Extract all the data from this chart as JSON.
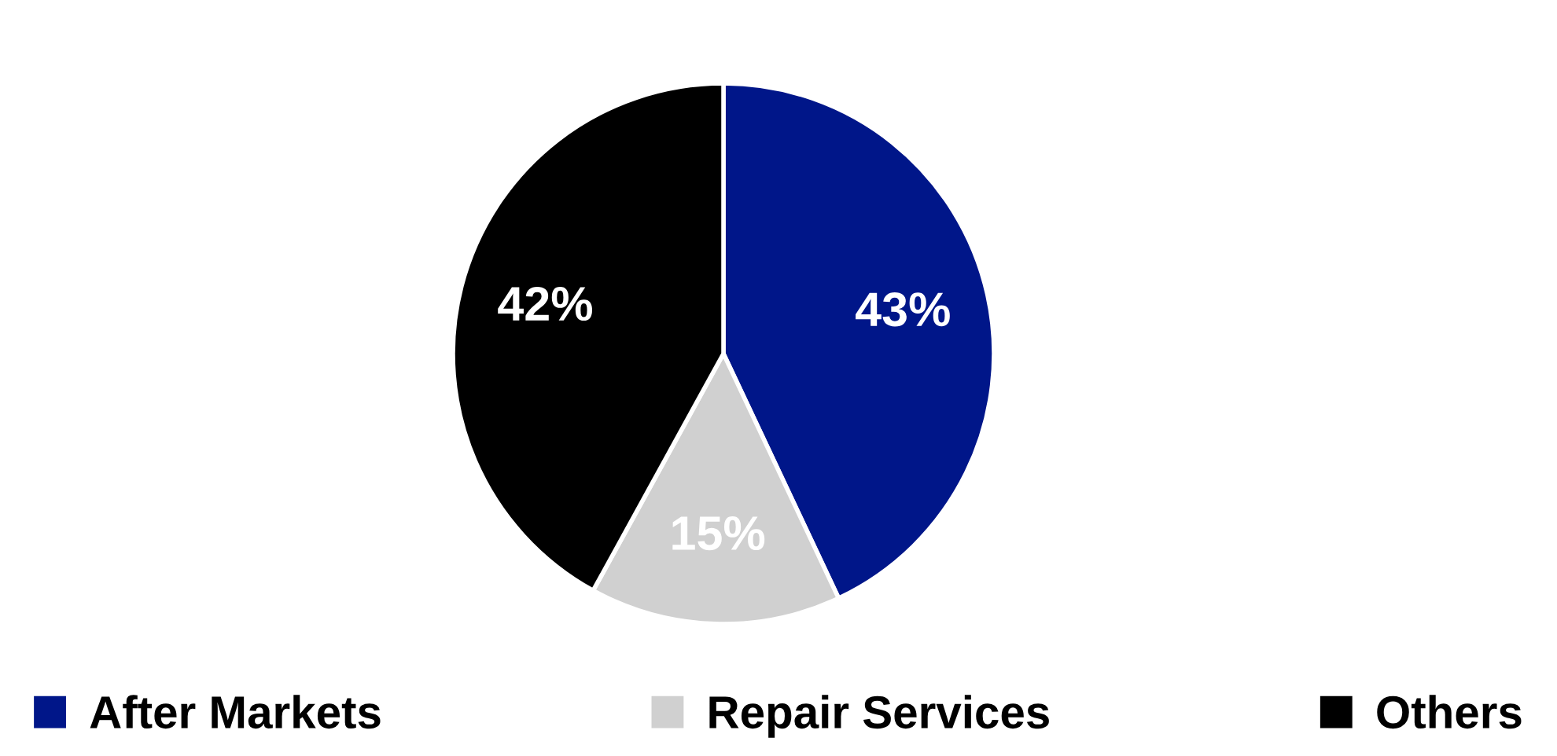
{
  "chart_data": {
    "type": "pie",
    "categories": [
      "After Markets",
      "Repair Services",
      "Others"
    ],
    "values": [
      43,
      15,
      42
    ],
    "colors": [
      "#001689",
      "#d0d0d0",
      "#000000"
    ],
    "value_labels": [
      "43%",
      "15%",
      "42%"
    ],
    "legend": "bottom"
  }
}
